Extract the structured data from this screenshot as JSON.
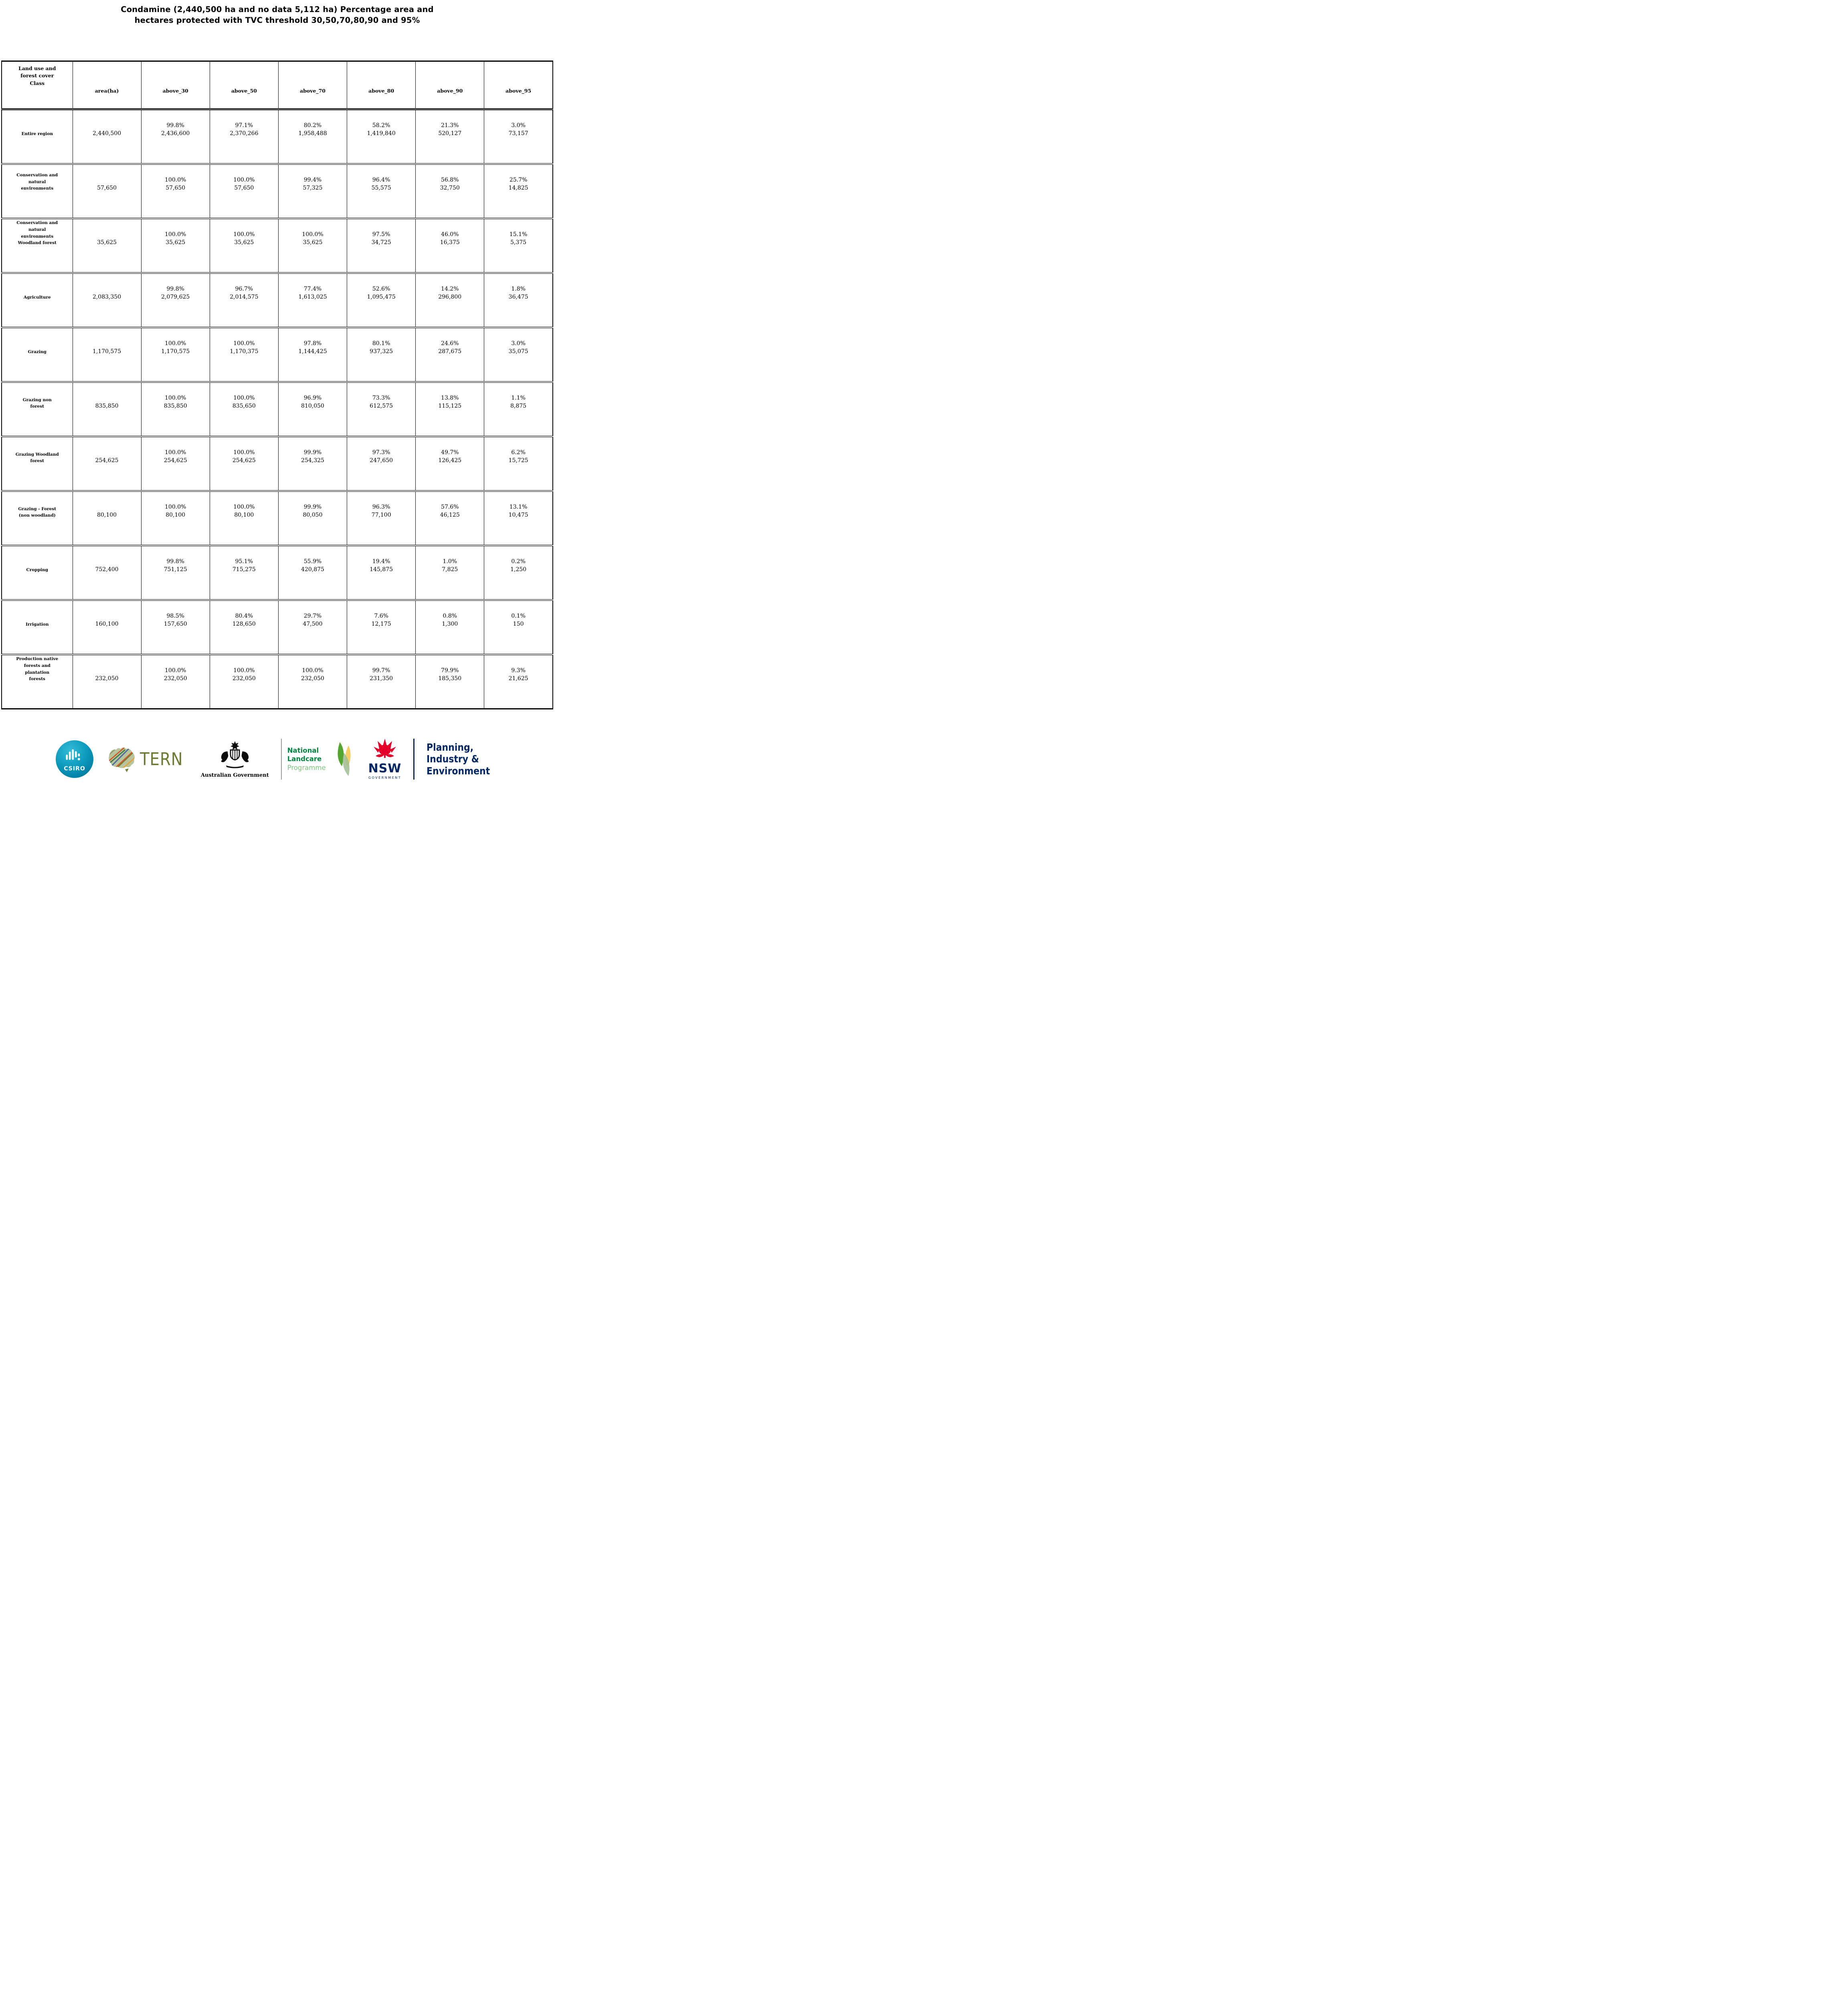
{
  "title": {
    "line1": "Condamine (2,440,500 ha and no data 5,112 ha) Percentage area and",
    "line2": "hectares protected with TVC threshold 30,50,70,80,90 and 95%"
  },
  "table": {
    "columns": [
      "Land use and\nforest cover\nClass",
      "area(ha)",
      "above_30",
      "above_50",
      "above_70",
      "above_80",
      "above_90",
      "above_95"
    ],
    "rows": [
      {
        "label": "Entire region",
        "area": "2,440,500",
        "cells": [
          [
            "99.8%",
            "2,436,600"
          ],
          [
            "97.1%",
            "2,370,266"
          ],
          [
            "80.2%",
            "1,958,488"
          ],
          [
            "58.2%",
            "1,419,840"
          ],
          [
            "21.3%",
            "520,127"
          ],
          [
            "3.0%",
            "73,157"
          ]
        ]
      },
      {
        "label": "Conservation and\nnatural\nenvironments",
        "area": "57,650",
        "cells": [
          [
            "100.0%",
            "57,650"
          ],
          [
            "100.0%",
            "57,650"
          ],
          [
            "99.4%",
            "57,325"
          ],
          [
            "96.4%",
            "55,575"
          ],
          [
            "56.8%",
            "32,750"
          ],
          [
            "25.7%",
            "14,825"
          ]
        ]
      },
      {
        "label": "Conservation and\nnatural\nenvironments\nWoodland forest",
        "area": "35,625",
        "cells": [
          [
            "100.0%",
            "35,625"
          ],
          [
            "100.0%",
            "35,625"
          ],
          [
            "100.0%",
            "35,625"
          ],
          [
            "97.5%",
            "34,725"
          ],
          [
            "46.0%",
            "16,375"
          ],
          [
            "15.1%",
            "5,375"
          ]
        ]
      },
      {
        "label": "Agriculture",
        "area": "2,083,350",
        "cells": [
          [
            "99.8%",
            "2,079,625"
          ],
          [
            "96.7%",
            "2,014,575"
          ],
          [
            "77.4%",
            "1,613,025"
          ],
          [
            "52.6%",
            "1,095,475"
          ],
          [
            "14.2%",
            "296,800"
          ],
          [
            "1.8%",
            "36,475"
          ]
        ]
      },
      {
        "label": "Grazing",
        "area": "1,170,575",
        "cells": [
          [
            "100.0%",
            "1,170,575"
          ],
          [
            "100.0%",
            "1,170,375"
          ],
          [
            "97.8%",
            "1,144,425"
          ],
          [
            "80.1%",
            "937,325"
          ],
          [
            "24.6%",
            "287,675"
          ],
          [
            "3.0%",
            "35,075"
          ]
        ]
      },
      {
        "label": "Grazing non\nforest",
        "area": "835,850",
        "cells": [
          [
            "100.0%",
            "835,850"
          ],
          [
            "100.0%",
            "835,650"
          ],
          [
            "96.9%",
            "810,050"
          ],
          [
            "73.3%",
            "612,575"
          ],
          [
            "13.8%",
            "115,125"
          ],
          [
            "1.1%",
            "8,875"
          ]
        ]
      },
      {
        "label": "Grazing Woodland\nforest",
        "area": "254,625",
        "cells": [
          [
            "100.0%",
            "254,625"
          ],
          [
            "100.0%",
            "254,625"
          ],
          [
            "99.9%",
            "254,325"
          ],
          [
            "97.3%",
            "247,650"
          ],
          [
            "49.7%",
            "126,425"
          ],
          [
            "6.2%",
            "15,725"
          ]
        ]
      },
      {
        "label": "Grazing - Forest\n(non woodland)",
        "area": "80,100",
        "cells": [
          [
            "100.0%",
            "80,100"
          ],
          [
            "100.0%",
            "80,100"
          ],
          [
            "99.9%",
            "80,050"
          ],
          [
            "96.3%",
            "77,100"
          ],
          [
            "57.6%",
            "46,125"
          ],
          [
            "13.1%",
            "10,475"
          ]
        ]
      },
      {
        "label": "Cropping",
        "area": "752,400",
        "cells": [
          [
            "99.8%",
            "751,125"
          ],
          [
            "95.1%",
            "715,275"
          ],
          [
            "55.9%",
            "420,875"
          ],
          [
            "19.4%",
            "145,875"
          ],
          [
            "1.0%",
            "7,825"
          ],
          [
            "0.2%",
            "1,250"
          ]
        ]
      },
      {
        "label": "Irrigation",
        "area": "160,100",
        "cells": [
          [
            "98.5%",
            "157,650"
          ],
          [
            "80.4%",
            "128,650"
          ],
          [
            "29.7%",
            "47,500"
          ],
          [
            "7.6%",
            "12,175"
          ],
          [
            "0.8%",
            "1,300"
          ],
          [
            "0.1%",
            "150"
          ]
        ]
      },
      {
        "label": "Production native\nforests and\nplantation\nforests",
        "area": "232,050",
        "cells": [
          [
            "100.0%",
            "232,050"
          ],
          [
            "100.0%",
            "232,050"
          ],
          [
            "100.0%",
            "232,050"
          ],
          [
            "99.7%",
            "231,350"
          ],
          [
            "79.9%",
            "185,350"
          ],
          [
            "9.3%",
            "21,625"
          ]
        ]
      }
    ]
  },
  "footer": {
    "csiro": {
      "label": "CSIRO"
    },
    "tern": {
      "label": "TERN"
    },
    "australian_government": {
      "label": "Australian Government"
    },
    "landcare": {
      "line1": "National",
      "line2": "Landcare",
      "line3": "Programme"
    },
    "nsw": {
      "label": "NSW",
      "sublabel": "GOVERNMENT"
    },
    "planning": {
      "line1": "Planning,",
      "line2": "Industry &",
      "line3": "Environment"
    }
  },
  "colors": {
    "csiro_teal": "#0b98ba",
    "tern_olive": "#6c7a34",
    "landcare_green": "#00853f",
    "landcare_light_green": "#7cc47f",
    "nsw_red": "#e4002b",
    "nsw_navy": "#002664"
  }
}
